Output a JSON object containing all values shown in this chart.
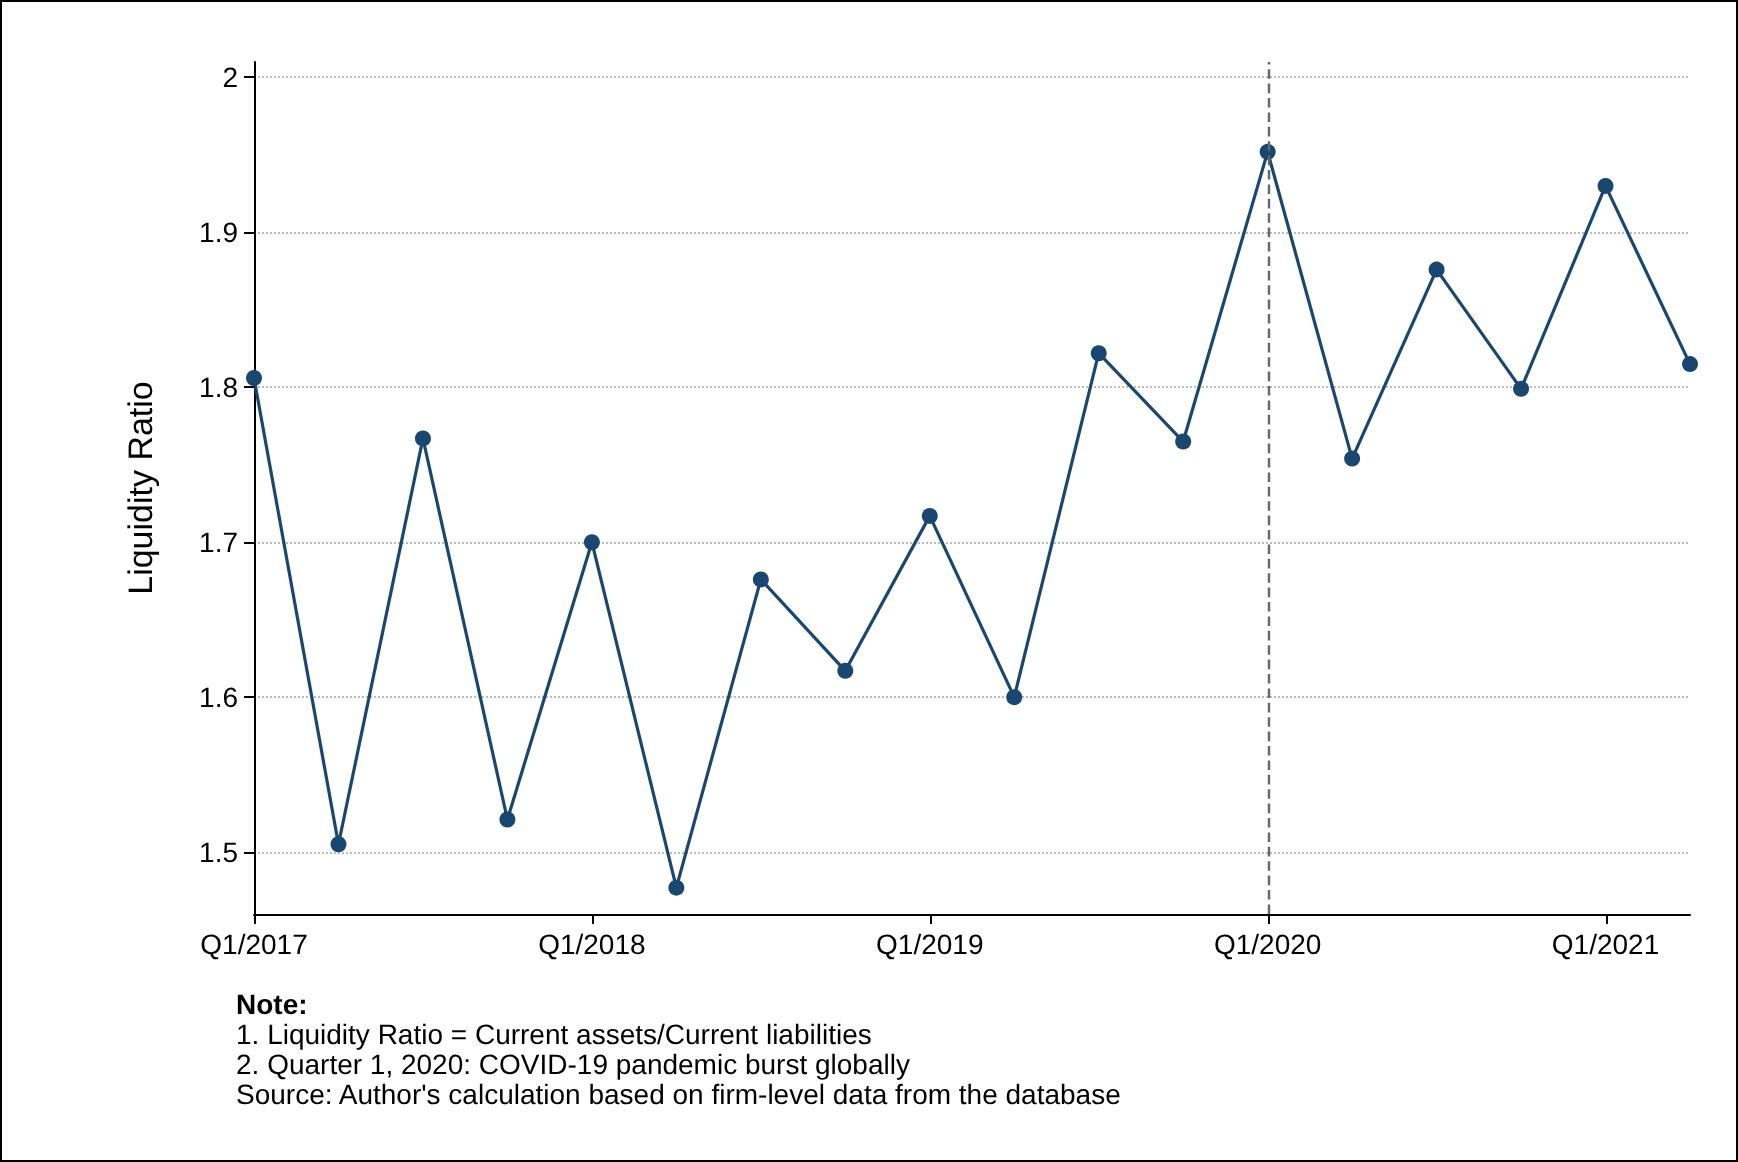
{
  "chart_data": {
    "type": "line",
    "ylabel": "Liquidity Ratio",
    "categories": [
      "Q1/2017",
      null,
      null,
      null,
      "Q1/2018",
      null,
      null,
      null,
      "Q1/2019",
      null,
      null,
      null,
      "Q1/2020",
      null,
      null,
      null,
      "Q1/2021",
      null
    ],
    "series": [
      {
        "color": "#1a476f",
        "values": [
          1.806,
          1.505,
          1.767,
          1.521,
          1.7,
          1.477,
          1.676,
          1.617,
          1.717,
          1.6,
          1.822,
          1.765,
          1.952,
          1.754,
          1.876,
          1.799,
          1.93,
          1.815
        ]
      }
    ],
    "ylim": [
      1.46,
      2.01
    ],
    "yticks": [
      1.5,
      1.6,
      1.7,
      1.8,
      1.9,
      2
    ],
    "grid": "y",
    "marker": "circle",
    "line_style": "solid",
    "ref_lines": [
      {
        "axis": "x",
        "value": "Q1/2020",
        "color": "#666666",
        "line_style": "dashed"
      }
    ],
    "annotations": [
      "Note:",
      "1. Liquidity Ratio = Current assets/Current liabilities",
      "2. Quarter 1, 2020: COVID-19 pandemic burst globally",
      "Source: Author's calculation based on firm-level data from the database"
    ]
  }
}
